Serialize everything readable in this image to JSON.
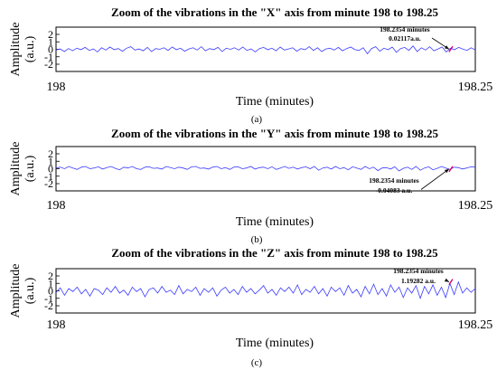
{
  "chart_data": [
    {
      "type": "line",
      "panel_label": "(a)",
      "title": "Zoom of the vibrations in the \"X\" axis from minute 198 to 198.25",
      "xlabel": "Time (minutes)",
      "ylabel_line1": "Amplitude",
      "ylabel_line2": "(a.u.)",
      "xlim": [
        198,
        198.25
      ],
      "ylim": [
        -2,
        2
      ],
      "x_tick_labels": [
        "198",
        "198.25"
      ],
      "y_tick_labels": [
        "2",
        "1",
        "0",
        "-1",
        "-2"
      ],
      "line_color": "#3b3bff",
      "highlight_color": "#d6006e",
      "annotation": {
        "x": 198.2354,
        "y": 0.02117,
        "line1": "198.2354 minutes",
        "line2": "0.02117a.u."
      },
      "series": [
        {
          "values": [
            -0.1,
            0.05,
            -0.3,
            0.1,
            -0.2,
            0.15,
            -0.05,
            0.25,
            -0.15,
            0.05,
            -0.35,
            0.2,
            -0.1,
            0.3,
            -0.05,
            0.1,
            -0.25,
            0.15,
            0.35,
            -0.1,
            0.05,
            -0.2,
            0.25,
            -0.3,
            0.1,
            0.0,
            0.2,
            -0.15,
            0.3,
            -0.05,
            0.15,
            -0.25,
            0.05,
            0.2,
            -0.1,
            0.35,
            -0.2,
            0.1,
            -0.05,
            0.25,
            -0.3,
            0.15,
            0.0,
            0.2,
            -0.1,
            0.3,
            -0.15,
            0.05,
            -0.35,
            0.1,
            0.25,
            -0.05,
            0.15,
            -0.2,
            0.3,
            -0.1,
            0.05,
            0.2,
            -0.25,
            0.1,
            -0.05,
            0.35,
            -0.15,
            0.2,
            -0.3,
            0.05,
            0.15,
            -0.1,
            0.25,
            -0.2,
            0.1,
            0.3,
            -0.05,
            -0.15,
            0.2,
            -0.6,
            0.1,
            0.35,
            -0.25,
            0.15,
            -0.05,
            0.3,
            -0.4,
            0.1,
            0.25,
            -0.15,
            0.45,
            -0.3,
            0.2,
            -0.1,
            0.35,
            -0.2,
            0.05,
            0.3,
            -0.35,
            0.15,
            -0.05,
            0.25,
            0.02,
            -0.15,
            0.2,
            -0.1
          ]
        }
      ]
    },
    {
      "type": "line",
      "panel_label": "(b)",
      "title": "Zoom of the vibrations in the \"Y\" axis from minute 198 to 198.25",
      "xlabel": "Time (minutes)",
      "ylabel_line1": "Amplitude",
      "ylabel_line2": "(a.u.)",
      "xlim": [
        198,
        198.25
      ],
      "ylim": [
        -2,
        2
      ],
      "x_tick_labels": [
        "198",
        "198.25"
      ],
      "y_tick_labels": [
        "2",
        "1",
        "0",
        "-1",
        "-2"
      ],
      "line_color": "#3b3bff",
      "highlight_color": "#d6006e",
      "annotation": {
        "x": 198.2354,
        "y": -0.04083,
        "line1": "198.2354 minutes",
        "line2": "-0.04083 a.u."
      },
      "series": [
        {
          "values": [
            0.1,
            0.2,
            0.0,
            0.3,
            0.1,
            -0.1,
            0.2,
            0.3,
            0.0,
            0.1,
            0.25,
            -0.05,
            0.15,
            0.3,
            0.05,
            -0.15,
            0.2,
            0.1,
            0.3,
            0.0,
            -0.1,
            0.2,
            0.25,
            0.05,
            0.1,
            -0.05,
            0.3,
            0.15,
            0.0,
            0.2,
            0.1,
            -0.1,
            0.25,
            0.3,
            0.05,
            0.1,
            -0.05,
            0.2,
            0.3,
            0.0,
            0.15,
            -0.1,
            0.2,
            0.25,
            0.0,
            0.1,
            0.3,
            -0.05,
            0.15,
            0.2,
            0.0,
            0.25,
            -0.1,
            0.1,
            0.3,
            0.05,
            0.2,
            -0.05,
            0.15,
            0.25,
            0.0,
            0.3,
            -0.2,
            0.1,
            0.2,
            -0.05,
            0.3,
            0.0,
            0.15,
            -0.15,
            0.25,
            0.1,
            -0.1,
            0.3,
            0.0,
            0.2,
            -0.25,
            0.1,
            0.15,
            -0.05,
            0.25,
            -0.3,
            0.05,
            0.2,
            -0.1,
            0.3,
            -0.2,
            0.1,
            0.25,
            -0.15,
            0.05,
            0.3,
            0.1,
            -0.1,
            0.2,
            0.15,
            -0.04,
            0.1,
            0.25,
            0.2
          ]
        }
      ]
    },
    {
      "type": "line",
      "panel_label": "(c)",
      "title": "Zoom of the vibrations in the \"Z\" axis from minute 198 to 198.25",
      "xlabel": "Time (minutes)",
      "ylabel_line1": "Amplitude",
      "ylabel_line2": "(a.u.)",
      "xlim": [
        198,
        198.25
      ],
      "ylim": [
        -2,
        2
      ],
      "x_tick_labels": [
        "198",
        "198.25"
      ],
      "y_tick_labels": [
        "2",
        "1",
        "0",
        "-1",
        "-2"
      ],
      "line_color": "#3b3bff",
      "highlight_color": "#d6006e",
      "annotation": {
        "x": 198.2354,
        "y": 1.19282,
        "line1": "198.2354 minutes",
        "line2": "1.19282 a.u."
      },
      "series": [
        {
          "values": [
            -0.2,
            0.4,
            -0.6,
            0.3,
            -0.1,
            0.5,
            -0.4,
            0.2,
            -0.7,
            0.3,
            0.1,
            -0.5,
            0.4,
            -0.2,
            0.6,
            -0.3,
            0.1,
            -0.6,
            0.5,
            -0.1,
            0.3,
            -0.8,
            0.2,
            0.4,
            -0.3,
            0.6,
            -0.2,
            0.1,
            -0.5,
            0.7,
            -0.4,
            0.2,
            -0.1,
            0.5,
            -0.6,
            0.3,
            -0.2,
            0.4,
            -0.7,
            0.1,
            0.5,
            -0.3,
            0.2,
            -0.5,
            0.6,
            -0.2,
            0.3,
            -0.4,
            0.1,
            0.7,
            -0.3,
            0.2,
            -0.6,
            0.4,
            -0.1,
            0.5,
            -0.3,
            0.8,
            -0.5,
            0.2,
            -0.2,
            0.6,
            -0.4,
            0.3,
            -0.7,
            0.5,
            -0.1,
            0.4,
            -0.6,
            0.7,
            -0.3,
            0.2,
            -0.8,
            0.6,
            -0.4,
            0.9,
            -0.5,
            0.3,
            -0.7,
            0.8,
            -0.2,
            0.5,
            -0.9,
            0.4,
            -0.3,
            0.7,
            -1.0,
            0.6,
            -0.4,
            0.8,
            -0.6,
            0.5,
            -0.9,
            1.0,
            -0.5,
            1.19282,
            -0.3,
            0.4,
            -0.2,
            0.3
          ]
        }
      ]
    }
  ]
}
